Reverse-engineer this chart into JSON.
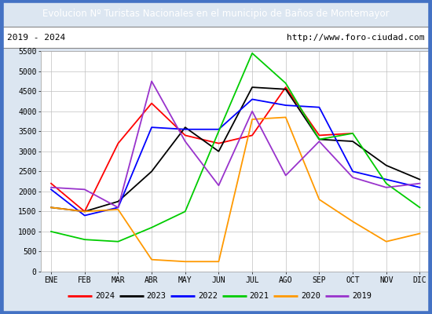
{
  "title": "Evolucion Nº Turistas Nacionales en el municipio de Baños de Montemayor",
  "subtitle_left": "2019 - 2024",
  "subtitle_right": "http://www.foro-ciudad.com",
  "months": [
    "ENE",
    "FEB",
    "MAR",
    "ABR",
    "MAY",
    "JUN",
    "JUL",
    "AGO",
    "SEP",
    "OCT",
    "NOV",
    "DIC"
  ],
  "series": {
    "2024": [
      2200,
      1500,
      3200,
      4200,
      3400,
      3200,
      3400,
      4600,
      3400,
      3450,
      null,
      null
    ],
    "2023": [
      1600,
      1500,
      1750,
      2500,
      3600,
      3000,
      4600,
      4550,
      3300,
      3250,
      2650,
      2300
    ],
    "2022": [
      2050,
      1400,
      1600,
      3600,
      3550,
      3550,
      4300,
      4150,
      4100,
      2500,
      2300,
      2100
    ],
    "2021": [
      1000,
      800,
      750,
      1100,
      1500,
      3500,
      5450,
      4700,
      3300,
      3450,
      2200,
      1600
    ],
    "2020": [
      1600,
      1500,
      1550,
      300,
      250,
      250,
      3800,
      3850,
      1800,
      1250,
      750,
      950
    ],
    "2019": [
      2100,
      2050,
      1600,
      4750,
      3250,
      2150,
      4000,
      2400,
      3250,
      2350,
      2100,
      2200
    ]
  },
  "colors": {
    "2024": "#ff0000",
    "2023": "#000000",
    "2022": "#0000ff",
    "2021": "#00cc00",
    "2020": "#ff9900",
    "2019": "#9933cc"
  },
  "ylim": [
    0,
    5500
  ],
  "yticks": [
    0,
    500,
    1000,
    1500,
    2000,
    2500,
    3000,
    3500,
    4000,
    4500,
    5000,
    5500
  ],
  "title_bg_color": "#4472c4",
  "title_text_color": "#ffffff",
  "plot_bg_color": "#ffffff",
  "outer_bg_color": "#dce6f1",
  "grid_color": "#c0c0c0",
  "border_color": "#4472c4"
}
